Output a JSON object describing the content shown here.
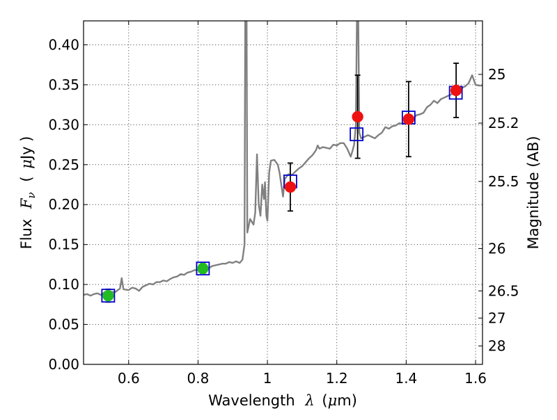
{
  "chart_data": {
    "type": "scatter",
    "xlabel_prefix": "Wavelength",
    "xlabel_symbol": "λ",
    "xlabel_unit_open": "(",
    "xlabel_unit_mu": "μ",
    "xlabel_unit_rest": "m)",
    "ylabel_prefix": "Flux",
    "ylabel_symbol": "F",
    "ylabel_subscript": "ν",
    "ylabel_unit_open": "(",
    "ylabel_unit_mu": "μ",
    "ylabel_unit_rest": "Jy )",
    "y2label": "Magnitude (AB)",
    "xlim": [
      0.47,
      1.62
    ],
    "ylim": [
      0.0,
      0.43
    ],
    "xticks": [
      0.6,
      0.8,
      1.0,
      1.2,
      1.4,
      1.6
    ],
    "xtick_labels": [
      "0.6",
      "0.8",
      "1",
      "1.2",
      "1.4",
      "1.6"
    ],
    "yticks": [
      0.0,
      0.05,
      0.1,
      0.15,
      0.2,
      0.25,
      0.3,
      0.35,
      0.4
    ],
    "ytick_labels": [
      "0.00",
      "0.05",
      "0.10",
      "0.15",
      "0.20",
      "0.25",
      "0.30",
      "0.35",
      "0.40"
    ],
    "y2ticks": [
      {
        "label": "25",
        "flux": 0.363
      },
      {
        "label": "25.2",
        "flux": 0.302
      },
      {
        "label": "25.5",
        "flux": 0.229
      },
      {
        "label": "26",
        "flux": 0.145
      },
      {
        "label": "26.5",
        "flux": 0.092
      },
      {
        "label": "27",
        "flux": 0.058
      },
      {
        "label": "28",
        "flux": 0.023
      }
    ],
    "grid": true,
    "colors": {
      "spectrum": "#808080",
      "model_box": "#0000cc",
      "optical": "#22bb22",
      "nir": "#ee1111",
      "errorbar": "#000000"
    },
    "spectrum": [
      [
        0.47,
        0.087
      ],
      [
        0.48,
        0.088
      ],
      [
        0.49,
        0.086
      ],
      [
        0.5,
        0.088
      ],
      [
        0.51,
        0.089
      ],
      [
        0.52,
        0.087
      ],
      [
        0.53,
        0.09
      ],
      [
        0.54,
        0.088
      ],
      [
        0.55,
        0.091
      ],
      [
        0.56,
        0.09
      ],
      [
        0.575,
        0.095
      ],
      [
        0.58,
        0.108
      ],
      [
        0.585,
        0.094
      ],
      [
        0.6,
        0.093
      ],
      [
        0.61,
        0.096
      ],
      [
        0.62,
        0.095
      ],
      [
        0.63,
        0.092
      ],
      [
        0.64,
        0.097
      ],
      [
        0.65,
        0.099
      ],
      [
        0.66,
        0.101
      ],
      [
        0.67,
        0.1
      ],
      [
        0.68,
        0.103
      ],
      [
        0.69,
        0.103
      ],
      [
        0.7,
        0.105
      ],
      [
        0.71,
        0.104
      ],
      [
        0.72,
        0.107
      ],
      [
        0.73,
        0.109
      ],
      [
        0.74,
        0.11
      ],
      [
        0.75,
        0.113
      ],
      [
        0.76,
        0.112
      ],
      [
        0.77,
        0.115
      ],
      [
        0.78,
        0.116
      ],
      [
        0.79,
        0.118
      ],
      [
        0.8,
        0.118
      ],
      [
        0.81,
        0.119
      ],
      [
        0.82,
        0.121
      ],
      [
        0.83,
        0.12
      ],
      [
        0.84,
        0.123
      ],
      [
        0.85,
        0.124
      ],
      [
        0.86,
        0.125
      ],
      [
        0.87,
        0.126
      ],
      [
        0.88,
        0.126
      ],
      [
        0.89,
        0.128
      ],
      [
        0.9,
        0.127
      ],
      [
        0.91,
        0.129
      ],
      [
        0.92,
        0.127
      ],
      [
        0.928,
        0.131
      ],
      [
        0.934,
        0.15
      ],
      [
        0.936,
        0.43
      ],
      [
        0.94,
        0.43
      ],
      [
        0.942,
        0.165
      ],
      [
        0.95,
        0.182
      ],
      [
        0.96,
        0.175
      ],
      [
        0.965,
        0.19
      ],
      [
        0.97,
        0.263
      ],
      [
        0.975,
        0.2
      ],
      [
        0.98,
        0.186
      ],
      [
        0.985,
        0.225
      ],
      [
        0.99,
        0.207
      ],
      [
        0.993,
        0.228
      ],
      [
        0.997,
        0.186
      ],
      [
        1.0,
        0.18
      ],
      [
        1.005,
        0.24
      ],
      [
        1.01,
        0.255
      ],
      [
        1.02,
        0.256
      ],
      [
        1.03,
        0.25
      ],
      [
        1.035,
        0.24
      ],
      [
        1.04,
        0.225
      ],
      [
        1.045,
        0.21
      ],
      [
        1.05,
        0.232
      ],
      [
        1.06,
        0.238
      ],
      [
        1.07,
        0.237
      ],
      [
        1.08,
        0.241
      ],
      [
        1.09,
        0.245
      ],
      [
        1.1,
        0.248
      ],
      [
        1.11,
        0.253
      ],
      [
        1.12,
        0.258
      ],
      [
        1.13,
        0.262
      ],
      [
        1.14,
        0.268
      ],
      [
        1.145,
        0.274
      ],
      [
        1.15,
        0.27
      ],
      [
        1.16,
        0.272
      ],
      [
        1.17,
        0.271
      ],
      [
        1.18,
        0.27
      ],
      [
        1.19,
        0.275
      ],
      [
        1.2,
        0.274
      ],
      [
        1.21,
        0.277
      ],
      [
        1.22,
        0.277
      ],
      [
        1.23,
        0.27
      ],
      [
        1.24,
        0.26
      ],
      [
        1.245,
        0.267
      ],
      [
        1.25,
        0.275
      ],
      [
        1.255,
        0.3
      ],
      [
        1.258,
        0.43
      ],
      [
        1.262,
        0.43
      ],
      [
        1.265,
        0.29
      ],
      [
        1.27,
        0.283
      ],
      [
        1.28,
        0.285
      ],
      [
        1.29,
        0.287
      ],
      [
        1.3,
        0.285
      ],
      [
        1.31,
        0.283
      ],
      [
        1.32,
        0.287
      ],
      [
        1.33,
        0.29
      ],
      [
        1.34,
        0.297
      ],
      [
        1.35,
        0.295
      ],
      [
        1.36,
        0.298
      ],
      [
        1.37,
        0.299
      ],
      [
        1.38,
        0.302
      ],
      [
        1.39,
        0.301
      ],
      [
        1.4,
        0.305
      ],
      [
        1.41,
        0.307
      ],
      [
        1.42,
        0.308
      ],
      [
        1.43,
        0.312
      ],
      [
        1.44,
        0.313
      ],
      [
        1.45,
        0.315
      ],
      [
        1.46,
        0.322
      ],
      [
        1.47,
        0.325
      ],
      [
        1.48,
        0.33
      ],
      [
        1.49,
        0.327
      ],
      [
        1.5,
        0.332
      ],
      [
        1.51,
        0.334
      ],
      [
        1.52,
        0.336
      ],
      [
        1.53,
        0.338
      ],
      [
        1.54,
        0.34
      ],
      [
        1.55,
        0.342
      ],
      [
        1.56,
        0.346
      ],
      [
        1.57,
        0.348
      ],
      [
        1.58,
        0.352
      ],
      [
        1.59,
        0.362
      ],
      [
        1.6,
        0.35
      ],
      [
        1.61,
        0.349
      ],
      [
        1.62,
        0.349
      ]
    ],
    "model_points": [
      {
        "x": 0.541,
        "y": 0.086
      },
      {
        "x": 0.814,
        "y": 0.12
      },
      {
        "x": 1.066,
        "y": 0.229
      },
      {
        "x": 1.257,
        "y": 0.288
      },
      {
        "x": 1.407,
        "y": 0.309
      },
      {
        "x": 1.543,
        "y": 0.34
      }
    ],
    "observed_points": [
      {
        "x": 0.541,
        "y": 0.086,
        "err": 0.008,
        "band": "optical"
      },
      {
        "x": 0.814,
        "y": 0.12,
        "err": 0.006,
        "band": "optical"
      },
      {
        "x": 1.066,
        "y": 0.222,
        "err": 0.03,
        "band": "nir"
      },
      {
        "x": 1.26,
        "y": 0.31,
        "err": 0.052,
        "band": "nir"
      },
      {
        "x": 1.407,
        "y": 0.307,
        "err": 0.047,
        "band": "nir"
      },
      {
        "x": 1.544,
        "y": 0.343,
        "err": 0.034,
        "band": "nir"
      }
    ]
  }
}
